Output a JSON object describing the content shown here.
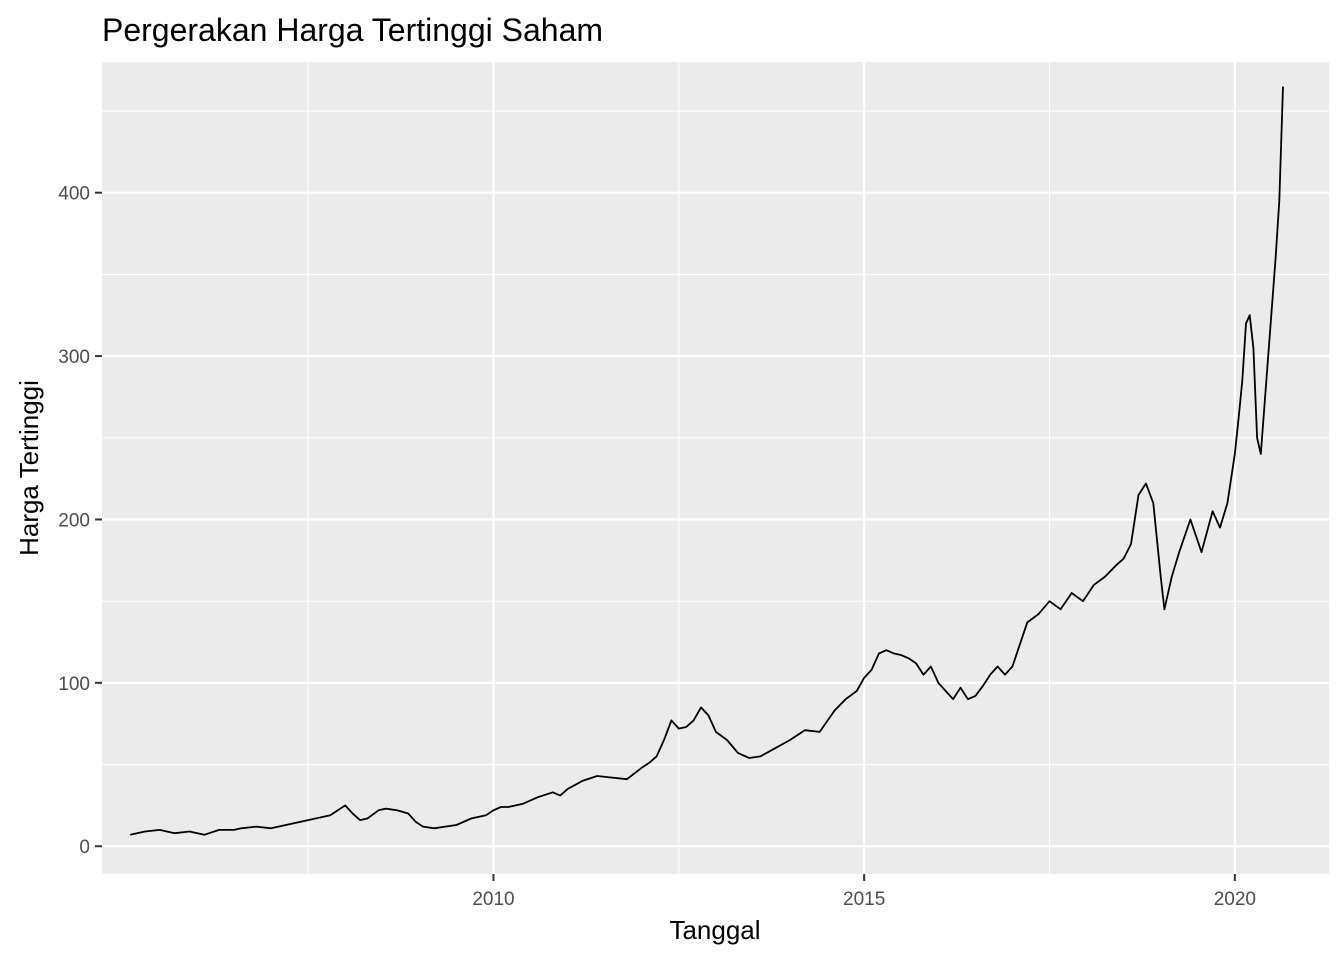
{
  "chart_data": {
    "type": "line",
    "title": "Pergerakan Harga Tertinggi Saham",
    "xlabel": "Tanggal",
    "ylabel": "Harga Tertinggi",
    "x_ticks": [
      {
        "year": 2010,
        "label": "2010"
      },
      {
        "year": 2015,
        "label": "2015"
      },
      {
        "year": 2020,
        "label": "2020"
      }
    ],
    "y_ticks": [
      {
        "value": 0,
        "label": "0"
      },
      {
        "value": 100,
        "label": "100"
      },
      {
        "value": 200,
        "label": "200"
      },
      {
        "value": 300,
        "label": "300"
      },
      {
        "value": 400,
        "label": "400"
      }
    ],
    "xlim": [
      2004.72,
      2021.27
    ],
    "ylim": [
      -17,
      480
    ],
    "grid": true,
    "background": "#ebebeb",
    "grid_color": "#ffffff",
    "line_color": "#000000",
    "series": [
      {
        "x": [
          2005.1,
          2005.3,
          2005.5,
          2005.7,
          2005.9,
          2006.1,
          2006.3,
          2006.5,
          2006.6,
          2006.8,
          2007.0,
          2007.2,
          2007.4,
          2007.6,
          2007.8,
          2007.9,
          2008.0,
          2008.1,
          2008.2,
          2008.3,
          2008.45,
          2008.55,
          2008.7,
          2008.85,
          2008.95,
          2009.05,
          2009.2,
          2009.35,
          2009.5,
          2009.7,
          2009.9,
          2010.0,
          2010.1,
          2010.2,
          2010.3,
          2010.4,
          2010.6,
          2010.8,
          2010.9,
          2011.0,
          2011.2,
          2011.4,
          2011.6,
          2011.8,
          2012.0,
          2012.1,
          2012.2,
          2012.3,
          2012.4,
          2012.5,
          2012.6,
          2012.7,
          2012.8,
          2012.9,
          2013.0,
          2013.15,
          2013.3,
          2013.45,
          2013.6,
          2013.8,
          2014.0,
          2014.2,
          2014.4,
          2014.6,
          2014.75,
          2014.9,
          2015.0,
          2015.1,
          2015.2,
          2015.3,
          2015.4,
          2015.5,
          2015.6,
          2015.7,
          2015.8,
          2015.9,
          2016.0,
          2016.1,
          2016.2,
          2016.3,
          2016.4,
          2016.5,
          2016.6,
          2016.7,
          2016.8,
          2016.9,
          2017.0,
          2017.2,
          2017.35,
          2017.5,
          2017.65,
          2017.8,
          2017.95,
          2018.1,
          2018.25,
          2018.4,
          2018.5,
          2018.6,
          2018.7,
          2018.8,
          2018.9,
          2019.0,
          2019.05,
          2019.15,
          2019.25,
          2019.4,
          2019.55,
          2019.7,
          2019.8,
          2019.9,
          2020.0,
          2020.05,
          2020.1,
          2020.15,
          2020.2,
          2020.25,
          2020.3,
          2020.35,
          2020.45,
          2020.55,
          2020.6,
          2020.65
        ],
        "y": [
          7,
          9,
          10,
          8,
          9,
          7,
          10,
          10,
          11,
          12,
          11,
          13,
          15,
          17,
          19,
          22,
          25,
          20,
          16,
          17,
          22,
          23,
          22,
          20,
          15,
          12,
          11,
          12,
          13,
          17,
          19,
          22,
          24,
          24,
          25,
          26,
          30,
          33,
          31,
          35,
          40,
          43,
          42,
          41,
          48,
          51,
          55,
          65,
          77,
          72,
          73,
          77,
          85,
          80,
          70,
          65,
          57,
          54,
          55,
          60,
          65,
          71,
          70,
          83,
          90,
          95,
          103,
          108,
          118,
          120,
          118,
          117,
          115,
          112,
          105,
          110,
          100,
          95,
          90,
          97,
          90,
          92,
          98,
          105,
          110,
          105,
          110,
          137,
          142,
          150,
          145,
          155,
          150,
          160,
          165,
          172,
          176,
          185,
          215,
          222,
          210,
          165,
          145,
          165,
          180,
          200,
          180,
          205,
          195,
          210,
          240,
          262,
          285,
          320,
          325,
          305,
          250,
          240,
          300,
          360,
          395,
          465
        ]
      }
    ]
  }
}
